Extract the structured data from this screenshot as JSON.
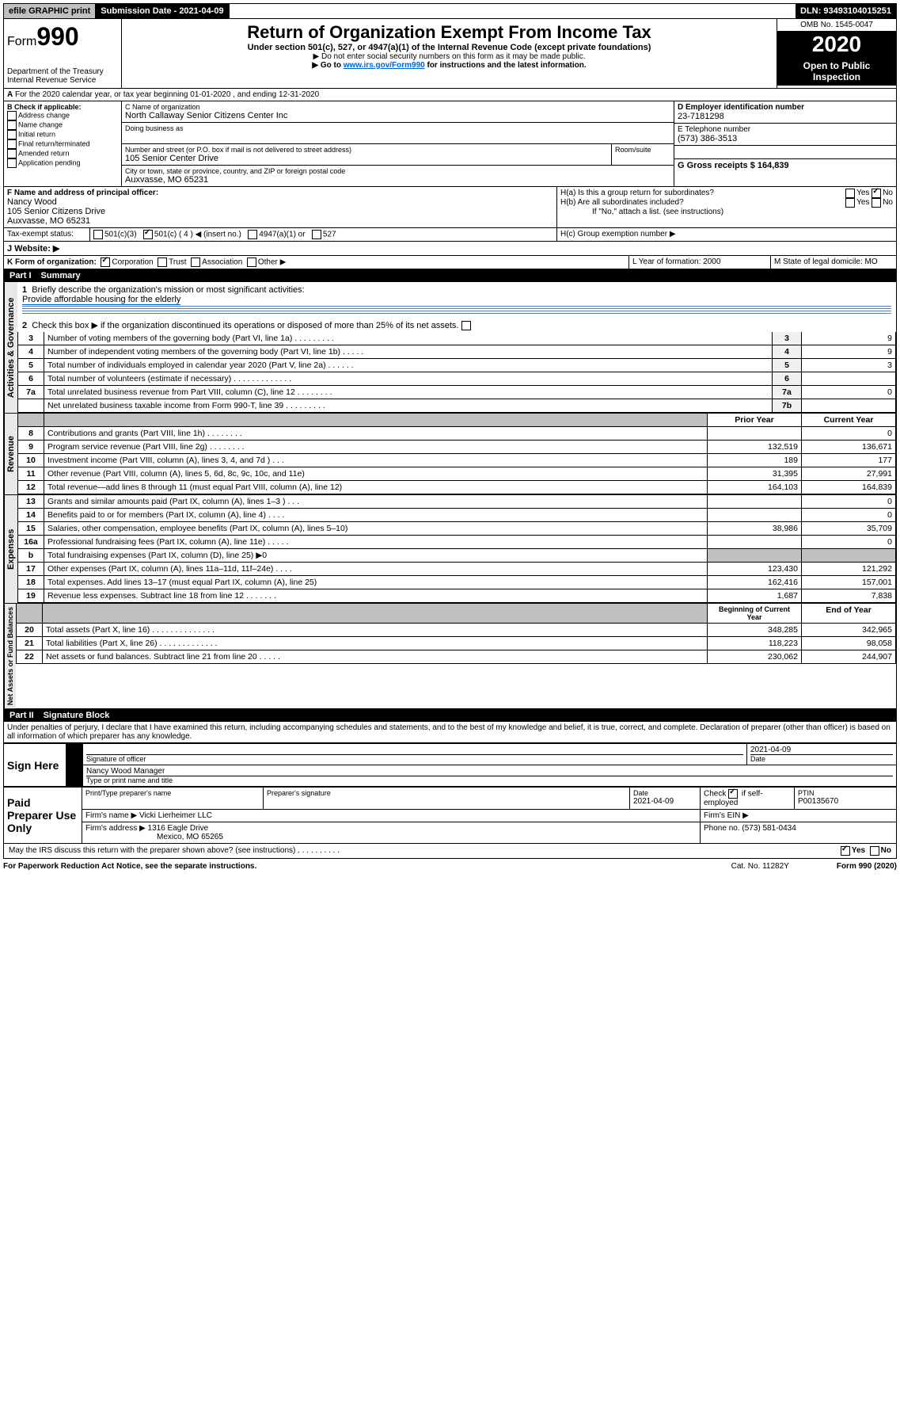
{
  "topbar": {
    "efile": "efile GRAPHIC print",
    "subdate_label": "Submission Date - 2021-04-09",
    "dln": "DLN: 93493104015251"
  },
  "header": {
    "form_prefix": "Form",
    "form_num": "990",
    "dept": "Department of the Treasury",
    "irs": "Internal Revenue Service",
    "title": "Return of Organization Exempt From Income Tax",
    "subtitle": "Under section 501(c), 527, or 4947(a)(1) of the Internal Revenue Code (except private foundations)",
    "instr1": "▶ Do not enter social security numbers on this form as it may be made public.",
    "instr2_pre": "▶ Go to ",
    "instr2_link": "www.irs.gov/Form990",
    "instr2_post": " for instructions and the latest information.",
    "omb": "OMB No. 1545-0047",
    "year": "2020",
    "open": "Open to Public Inspection"
  },
  "secA": "For the 2020 calendar year, or tax year beginning 01-01-2020    , and ending 12-31-2020",
  "blockB": {
    "label": "B Check if applicable:",
    "items": [
      "Address change",
      "Name change",
      "Initial return",
      "Final return/terminated",
      "Amended return",
      "Application pending"
    ]
  },
  "blockC": {
    "name_label": "C Name of organization",
    "name": "North Callaway Senior Citizens Center Inc",
    "dba_label": "Doing business as",
    "addr_label": "Number and street (or P.O. box if mail is not delivered to street address)",
    "room_label": "Room/suite",
    "addr": "105 Senior Center Drive",
    "city_label": "City or town, state or province, country, and ZIP or foreign postal code",
    "city": "Auxvasse, MO  65231"
  },
  "blockD": {
    "label": "D Employer identification number",
    "ein": "23-7181298",
    "tel_label": "E Telephone number",
    "tel": "(573) 386-3513",
    "gross_label": "G Gross receipts $ 164,839"
  },
  "blockF": {
    "label": "F  Name and address of principal officer:",
    "name": "Nancy Wood",
    "addr1": "105 Senior Citizens Drive",
    "addr2": "Auxvasse, MO  65231"
  },
  "blockH": {
    "a": "H(a)  Is this a group return for subordinates?",
    "b": "H(b)  Are all subordinates included?",
    "b_note": "If \"No,\" attach a list. (see instructions)",
    "c": "H(c)  Group exemption number ▶",
    "yes": "Yes",
    "no": "No"
  },
  "taxstatus": {
    "label": "Tax-exempt status:",
    "opts": [
      "501(c)(3)",
      "501(c) ( 4 ) ◀ (insert no.)",
      "4947(a)(1) or",
      "527"
    ]
  },
  "website": {
    "label": "J   Website: ▶"
  },
  "formK": {
    "label": "K Form of organization:",
    "opts": [
      "Corporation",
      "Trust",
      "Association",
      "Other ▶"
    ],
    "L": "L Year of formation: 2000",
    "M": "M State of legal domicile: MO"
  },
  "part1": {
    "title": "Part I",
    "name": "Summary",
    "line1_label": "Briefly describe the organization's mission or most significant activities:",
    "line1_text": "Provide affordable housing for the elderly",
    "line2": "Check this box ▶       if the organization discontinued its operations or disposed of more than 25% of its net assets.",
    "rows_gov": [
      {
        "n": "3",
        "d": "Number of voting members of the governing body (Part VI, line 1a)  .   .   .   .   .   .   .   .   .",
        "b": "3",
        "v": "9"
      },
      {
        "n": "4",
        "d": "Number of independent voting members of the governing body (Part VI, line 1b)  .   .   .   .   .",
        "b": "4",
        "v": "9"
      },
      {
        "n": "5",
        "d": "Total number of individuals employed in calendar year 2020 (Part V, line 2a)  .   .   .   .   .   .",
        "b": "5",
        "v": "3"
      },
      {
        "n": "6",
        "d": "Total number of volunteers (estimate if necessary)  .   .   .   .   .   .   .   .   .   .   .   .   .",
        "b": "6",
        "v": ""
      },
      {
        "n": "7a",
        "d": "Total unrelated business revenue from Part VIII, column (C), line 12  .   .   .   .   .   .   .   .",
        "b": "7a",
        "v": "0"
      },
      {
        "n": "",
        "d": "Net unrelated business taxable income from Form 990-T, line 39  .   .   .   .   .   .   .   .   .",
        "b": "7b",
        "v": ""
      }
    ],
    "col_prior": "Prior Year",
    "col_curr": "Current Year",
    "rows_rev": [
      {
        "n": "8",
        "d": "Contributions and grants (Part VIII, line 1h)   .   .   .   .   .   .   .   .",
        "p": "",
        "c": "0"
      },
      {
        "n": "9",
        "d": "Program service revenue (Part VIII, line 2g)   .   .   .   .   .   .   .   .",
        "p": "132,519",
        "c": "136,671"
      },
      {
        "n": "10",
        "d": "Investment income (Part VIII, column (A), lines 3, 4, and 7d )   .   .   .",
        "p": "189",
        "c": "177"
      },
      {
        "n": "11",
        "d": "Other revenue (Part VIII, column (A), lines 5, 6d, 8c, 9c, 10c, and 11e)",
        "p": "31,395",
        "c": "27,991"
      },
      {
        "n": "12",
        "d": "Total revenue—add lines 8 through 11 (must equal Part VIII, column (A), line 12)",
        "p": "164,103",
        "c": "164,839"
      }
    ],
    "rows_exp": [
      {
        "n": "13",
        "d": "Grants and similar amounts paid (Part IX, column (A), lines 1–3 )   .   .   .",
        "p": "",
        "c": "0"
      },
      {
        "n": "14",
        "d": "Benefits paid to or for members (Part IX, column (A), line 4)   .   .   .   .",
        "p": "",
        "c": "0"
      },
      {
        "n": "15",
        "d": "Salaries, other compensation, employee benefits (Part IX, column (A), lines 5–10)",
        "p": "38,986",
        "c": "35,709"
      },
      {
        "n": "16a",
        "d": "Professional fundraising fees (Part IX, column (A), line 11e)   .   .   .   .   .",
        "p": "",
        "c": "0"
      },
      {
        "n": "b",
        "d": "Total fundraising expenses (Part IX, column (D), line 25) ▶0",
        "p": "shade",
        "c": "shade"
      },
      {
        "n": "17",
        "d": "Other expenses (Part IX, column (A), lines 11a–11d, 11f–24e)   .   .   .   .",
        "p": "123,430",
        "c": "121,292"
      },
      {
        "n": "18",
        "d": "Total expenses. Add lines 13–17 (must equal Part IX, column (A), line 25)",
        "p": "162,416",
        "c": "157,001"
      },
      {
        "n": "19",
        "d": "Revenue less expenses. Subtract line 18 from line 12   .   .   .   .   .   .   .",
        "p": "1,687",
        "c": "7,838"
      }
    ],
    "col_beg": "Beginning of Current Year",
    "col_end": "End of Year",
    "rows_net": [
      {
        "n": "20",
        "d": "Total assets (Part X, line 16)   .   .   .   .   .   .   .   .   .   .   .   .   .   .",
        "p": "348,285",
        "c": "342,965"
      },
      {
        "n": "21",
        "d": "Total liabilities (Part X, line 26)   .   .   .   .   .   .   .   .   .   .   .   .   .",
        "p": "118,223",
        "c": "98,058"
      },
      {
        "n": "22",
        "d": "Net assets or fund balances. Subtract line 21 from line 20   .   .   .   .   .",
        "p": "230,062",
        "c": "244,907"
      }
    ],
    "vlabels": {
      "gov": "Activities & Governance",
      "rev": "Revenue",
      "exp": "Expenses",
      "net": "Net Assets or Fund Balances"
    }
  },
  "part2": {
    "title": "Part II",
    "name": "Signature Block",
    "perjury": "Under penalties of perjury, I declare that I have examined this return, including accompanying schedules and statements, and to the best of my knowledge and belief, it is true, correct, and complete. Declaration of preparer (other than officer) is based on all information of which preparer has any knowledge.",
    "sign_here": "Sign Here",
    "sig_officer": "Signature of officer",
    "sig_date": "2021-04-09",
    "date_lbl": "Date",
    "officer_name": "Nancy Wood Manager",
    "type_name": "Type or print name and title",
    "paid": "Paid Preparer Use Only",
    "prep_name_lbl": "Print/Type preparer's name",
    "prep_sig_lbl": "Preparer's signature",
    "prep_date_lbl": "Date",
    "prep_date": "2021-04-09",
    "check_lbl": "Check",
    "self_emp": "if self-employed",
    "ptin_lbl": "PTIN",
    "ptin": "P00135670",
    "firm_name_lbl": "Firm's name    ▶",
    "firm_name": "Vicki Lierheimer LLC",
    "firm_ein_lbl": "Firm's EIN ▶",
    "firm_addr_lbl": "Firm's address ▶",
    "firm_addr1": "1316 Eagle Drive",
    "firm_addr2": "Mexico, MO  65265",
    "phone_lbl": "Phone no. (573) 581-0434",
    "discuss": "May the IRS discuss this return with the preparer shown above? (see instructions)   .   .   .   .   .   .   .   .   .   ."
  },
  "footer": {
    "left": "For Paperwork Reduction Act Notice, see the separate instructions.",
    "mid": "Cat. No. 11282Y",
    "right": "Form 990 (2020)"
  }
}
